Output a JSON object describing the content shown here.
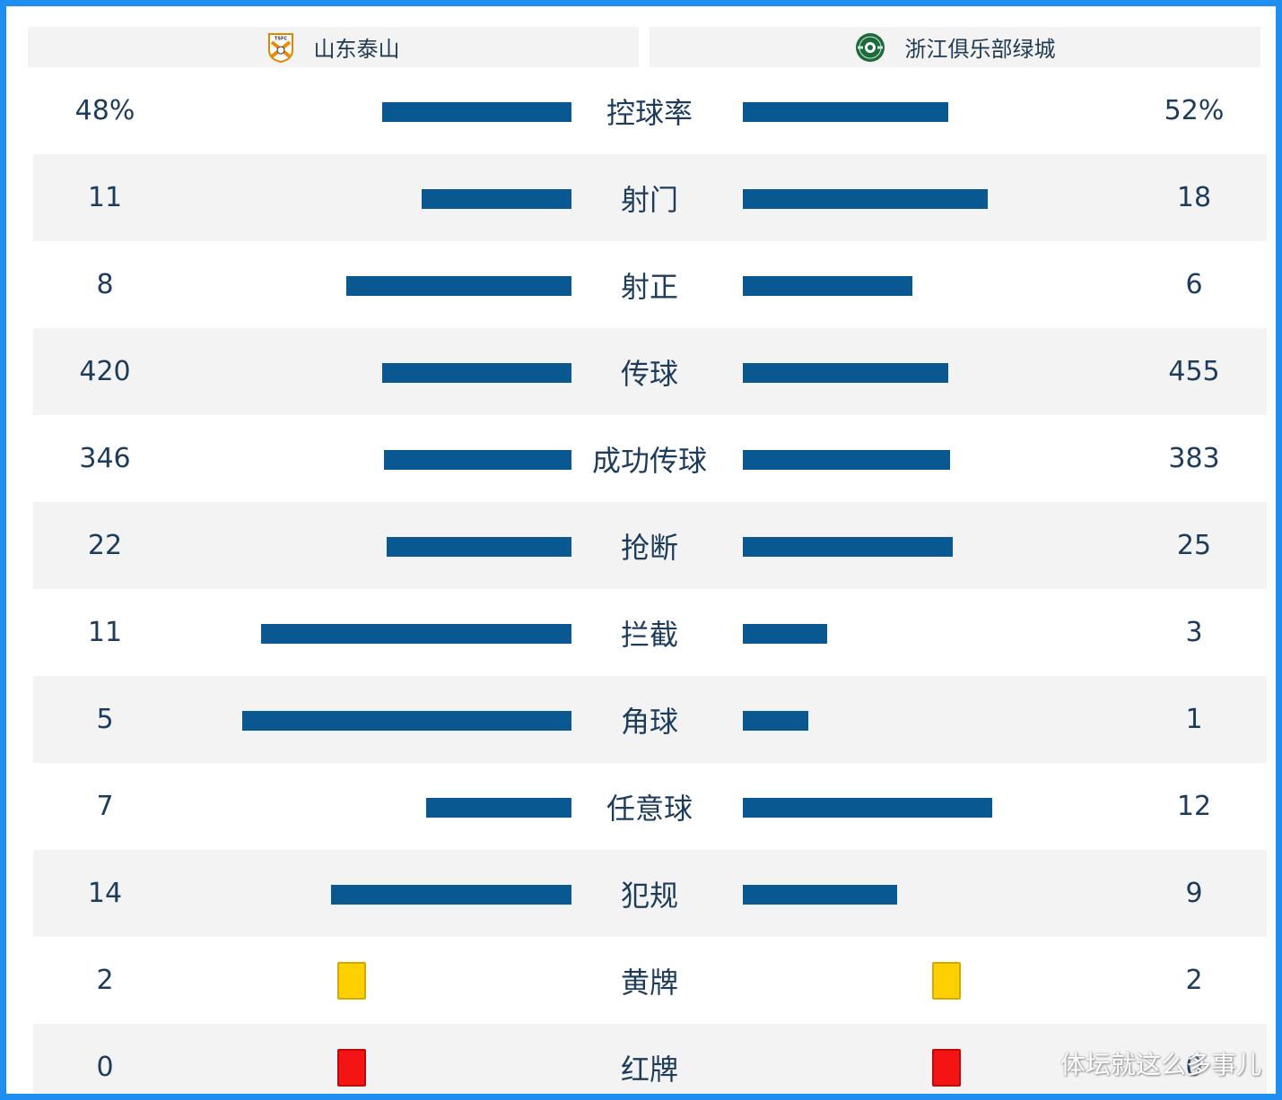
{
  "header": {
    "home_team": "山东泰山",
    "home_logo_text": "TSFC",
    "away_team": "浙江俱乐部绿城"
  },
  "colors": {
    "bar": "#0a5891",
    "yellow_card": "#ffd000",
    "red_card": "#f51414",
    "frame": "#1e8ff0",
    "shade": "#f3f3f3"
  },
  "chart_data": {
    "type": "bar",
    "layout": "diverging-horizontal",
    "series": [
      {
        "name": "山东泰山"
      },
      {
        "name": "浙江俱乐部绿城"
      }
    ],
    "rows": [
      {
        "label": "控球率",
        "left": "48%",
        "right": "52%",
        "left_value": 48,
        "right_value": 52,
        "kind": "bar"
      },
      {
        "label": "射门",
        "left": "11",
        "right": "18",
        "left_value": 11,
        "right_value": 18,
        "kind": "bar"
      },
      {
        "label": "射正",
        "left": "8",
        "right": "6",
        "left_value": 8,
        "right_value": 6,
        "kind": "bar"
      },
      {
        "label": "传球",
        "left": "420",
        "right": "455",
        "left_value": 420,
        "right_value": 455,
        "kind": "bar"
      },
      {
        "label": "成功传球",
        "left": "346",
        "right": "383",
        "left_value": 346,
        "right_value": 383,
        "kind": "bar"
      },
      {
        "label": "抢断",
        "left": "22",
        "right": "25",
        "left_value": 22,
        "right_value": 25,
        "kind": "bar"
      },
      {
        "label": "拦截",
        "left": "11",
        "right": "3",
        "left_value": 11,
        "right_value": 3,
        "kind": "bar"
      },
      {
        "label": "角球",
        "left": "5",
        "right": "1",
        "left_value": 5,
        "right_value": 1,
        "kind": "bar"
      },
      {
        "label": "任意球",
        "left": "7",
        "right": "12",
        "left_value": 7,
        "right_value": 12,
        "kind": "bar"
      },
      {
        "label": "犯规",
        "left": "14",
        "right": "9",
        "left_value": 14,
        "right_value": 9,
        "kind": "bar"
      },
      {
        "label": "黄牌",
        "left": "2",
        "right": "2",
        "left_value": 2,
        "right_value": 2,
        "kind": "yellow-card"
      },
      {
        "label": "红牌",
        "left": "0",
        "right": "0",
        "left_value": 0,
        "right_value": 0,
        "kind": "red-card"
      }
    ]
  },
  "watermark": "体坛就这么多事儿"
}
